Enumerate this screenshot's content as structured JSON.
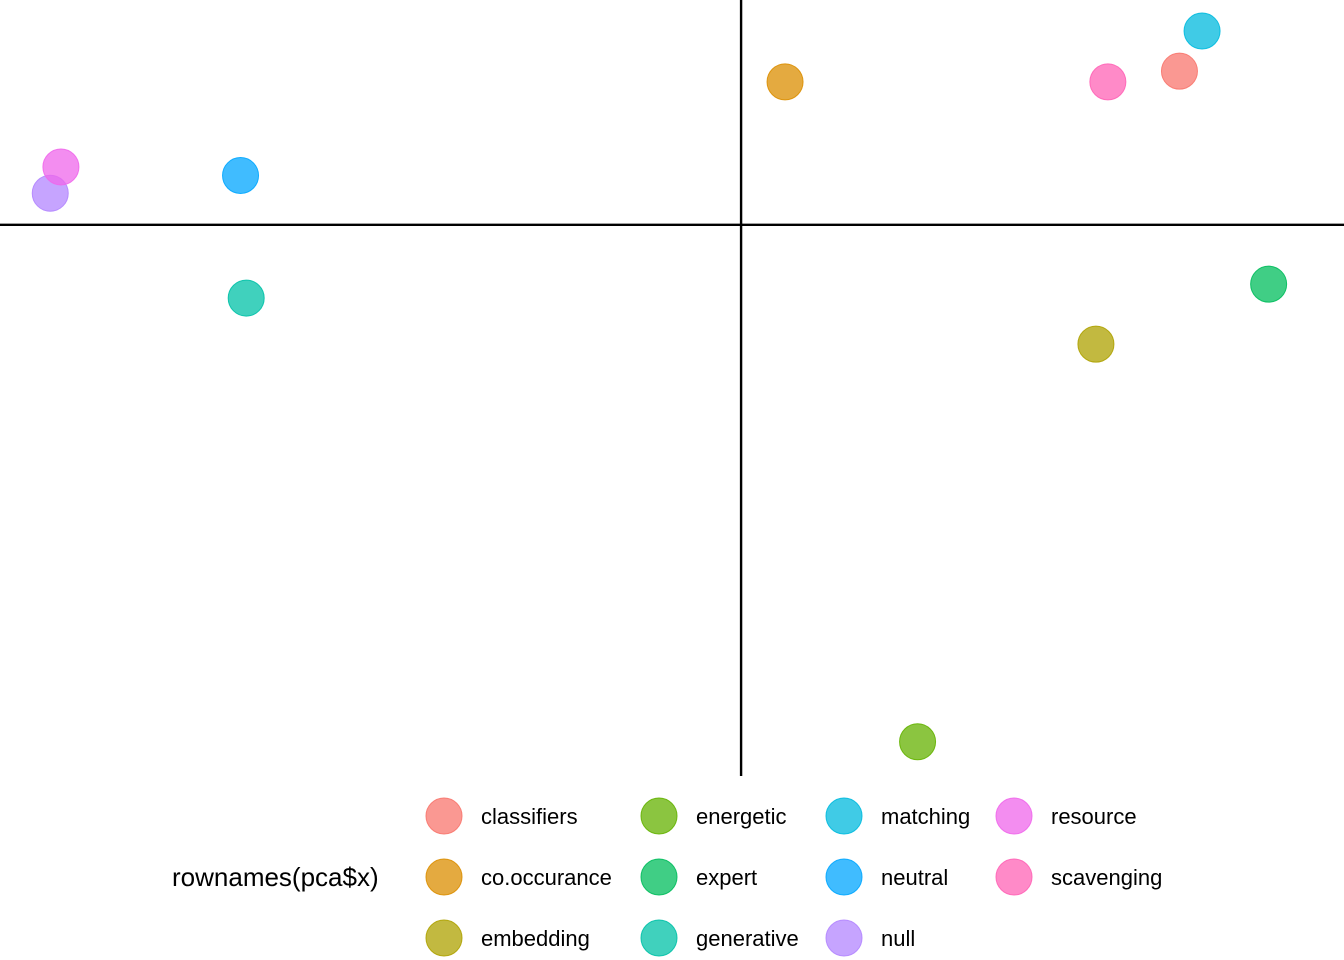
{
  "chart_data": {
    "type": "scatter",
    "title": "",
    "xlabel": "",
    "ylabel": "",
    "xlim": [
      -1.18,
      0.96
    ],
    "ylim": [
      -1.03,
      0.42
    ],
    "reference_lines": {
      "x": 0,
      "y": 0
    },
    "grid": false,
    "legend": {
      "title": "rownames(pca$x)",
      "position": "bottom"
    },
    "points": [
      {
        "label": "classifiers",
        "x": 0.698,
        "y": 0.287,
        "color": "#F8766D"
      },
      {
        "label": "co.occurance",
        "x": 0.07,
        "y": 0.267,
        "color": "#DB8E00"
      },
      {
        "label": "embedding",
        "x": 0.565,
        "y": -0.223,
        "color": "#AEA200"
      },
      {
        "label": "energetic",
        "x": 0.281,
        "y": -0.966,
        "color": "#64B200"
      },
      {
        "label": "expert",
        "x": 0.84,
        "y": -0.111,
        "color": "#00BD5C"
      },
      {
        "label": "generative",
        "x": -0.788,
        "y": -0.137,
        "color": "#00C1A7"
      },
      {
        "label": "matching",
        "x": 0.734,
        "y": 0.362,
        "color": "#00BADE"
      },
      {
        "label": "neutral",
        "x": -0.797,
        "y": 0.092,
        "color": "#00A6FF"
      },
      {
        "label": "null",
        "x": -1.1,
        "y": 0.059,
        "color": "#B385FF"
      },
      {
        "label": "resource",
        "x": -1.083,
        "y": 0.108,
        "color": "#EF67EB"
      },
      {
        "label": "scavenging",
        "x": 0.584,
        "y": 0.267,
        "color": "#FF63B6"
      }
    ]
  }
}
